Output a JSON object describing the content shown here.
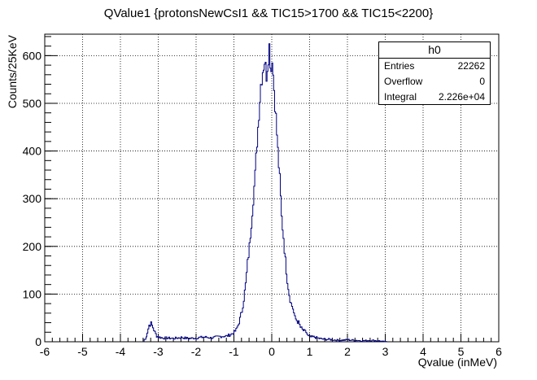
{
  "chart_data": {
    "type": "bar",
    "title": "QValue1 {protonsNewCsI1 && TIC15>1700 && TIC15<2200}",
    "xlabel": "Qvalue (inMeV)",
    "ylabel": "Counts/25KeV",
    "xlim": [
      -6,
      6
    ],
    "ylim": [
      0,
      645
    ],
    "xticks": [
      "-6",
      "-5",
      "-4",
      "-3",
      "-2",
      "-1",
      "0",
      "1",
      "2",
      "3",
      "4",
      "5",
      "6"
    ],
    "yticks": [
      "0",
      "100",
      "200",
      "300",
      "400",
      "500",
      "600"
    ],
    "grid": true,
    "bin_width": 0.025,
    "line_color": "#000080",
    "histogram": {
      "x": [
        -3.35,
        -3.3,
        -3.25,
        -3.2,
        -3.15,
        -3.1,
        -3.05,
        -3.0,
        -2.9,
        -2.8,
        -2.6,
        -2.4,
        -2.2,
        -2.0,
        -1.8,
        -1.6,
        -1.4,
        -1.2,
        -1.1,
        -1.0,
        -0.95,
        -0.9,
        -0.85,
        -0.8,
        -0.75,
        -0.7,
        -0.65,
        -0.6,
        -0.55,
        -0.5,
        -0.45,
        -0.4,
        -0.35,
        -0.3,
        -0.25,
        -0.2,
        -0.15,
        -0.1,
        -0.075,
        -0.05,
        -0.025,
        0.0,
        0.025,
        0.05,
        0.075,
        0.1,
        0.15,
        0.2,
        0.25,
        0.3,
        0.35,
        0.4,
        0.45,
        0.5,
        0.55,
        0.6,
        0.65,
        0.7,
        0.75,
        0.8,
        0.85,
        0.9,
        0.95,
        1.0,
        1.1,
        1.2,
        1.3,
        1.4,
        1.5,
        1.6,
        1.8,
        2.0,
        2.2,
        2.4,
        2.6,
        2.8,
        3.0
      ],
      "counts": [
        5,
        20,
        35,
        38,
        30,
        20,
        12,
        10,
        8,
        8,
        7,
        9,
        7,
        8,
        10,
        8,
        11,
        12,
        15,
        20,
        25,
        35,
        48,
        65,
        90,
        120,
        165,
        200,
        250,
        300,
        350,
        420,
        480,
        540,
        570,
        590,
        560,
        600,
        620,
        590,
        570,
        600,
        560,
        530,
        500,
        470,
        400,
        340,
        260,
        220,
        170,
        130,
        100,
        80,
        70,
        50,
        45,
        40,
        30,
        25,
        22,
        20,
        12,
        10,
        10,
        8,
        6,
        5,
        5,
        4,
        3,
        4,
        3,
        2,
        3,
        2,
        0
      ]
    }
  },
  "stats": {
    "title": "h0",
    "rows": [
      {
        "label": "Entries",
        "value": "22262"
      },
      {
        "label": "Overflow",
        "value": "0"
      },
      {
        "label": "Integral",
        "value": "2.226e+04"
      }
    ]
  }
}
